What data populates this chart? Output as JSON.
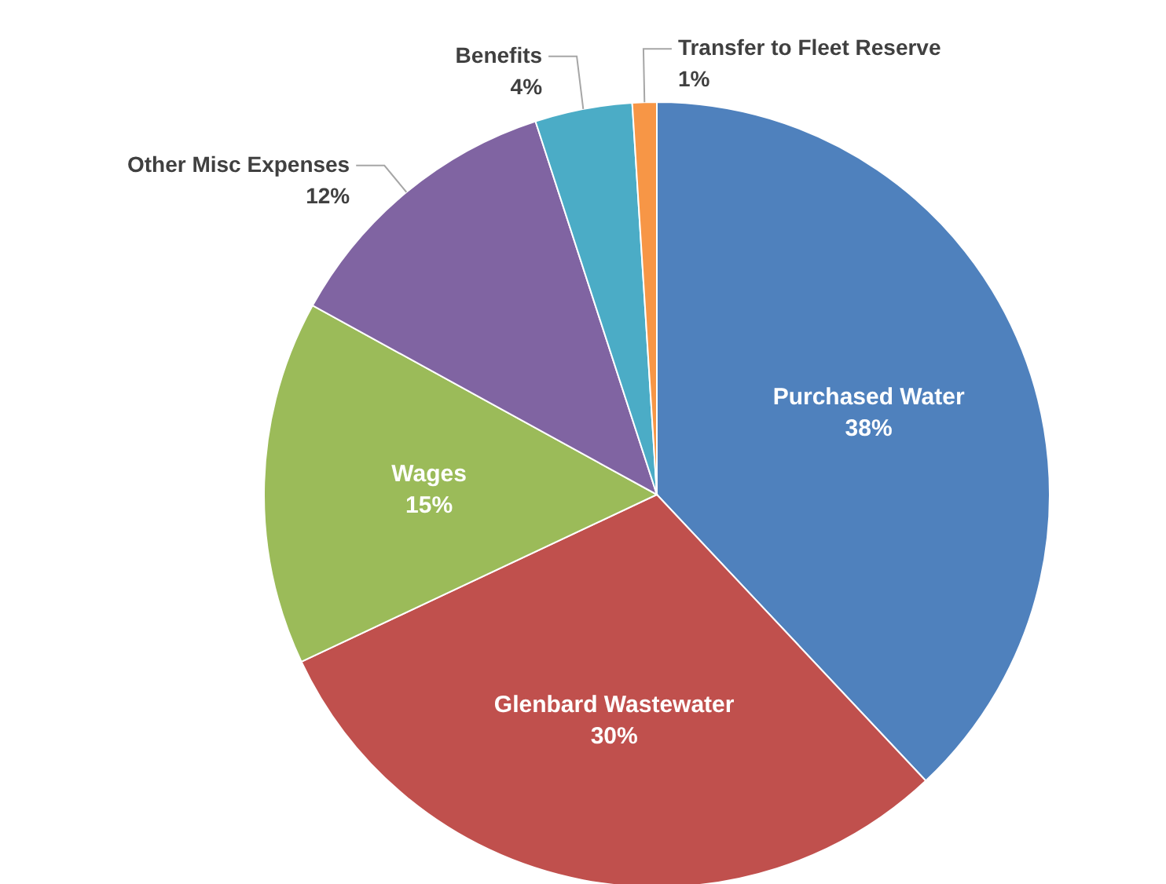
{
  "chart_data": {
    "type": "pie",
    "categories": [
      "Purchased Water",
      "Glenbard Wastewater",
      "Wages",
      "Other Misc Expenses",
      "Benefits",
      "Transfer to Fleet Reserve"
    ],
    "values": [
      38,
      30,
      15,
      12,
      4,
      1
    ],
    "value_labels": [
      "38%",
      "30%",
      "15%",
      "12%",
      "4%",
      "1%"
    ],
    "colors": [
      "#4f81bd",
      "#c0504d",
      "#9bbb59",
      "#8064a2",
      "#4bacc6",
      "#f79646"
    ],
    "legend": false
  }
}
